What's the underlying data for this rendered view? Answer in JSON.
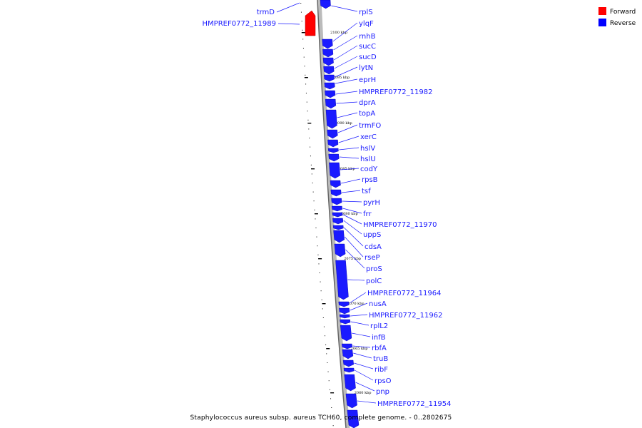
{
  "caption": "Staphylococcus aureus subsp. aureus TCH60, complete genome. - 0..2802675",
  "legend": [
    {
      "label": "Forward",
      "color": "#ff0000"
    },
    {
      "label": "Reverse",
      "color": "#0000ff"
    }
  ],
  "colors": {
    "forward": "#ff0000",
    "reverse": "#1a1aff",
    "backbone": "#999999",
    "label": "#1a1aff"
  },
  "tick_labels": [
    "2100 kbp",
    "2095 kbp",
    "2090 kbp",
    "2085 kbp",
    "2080 kbp",
    "2075 kbp",
    "2070 kbp",
    "2065 kbp",
    "2060 kbp"
  ],
  "forward_genes": [
    "trmD",
    "HMPREF0772_11989"
  ],
  "reverse_genes": [
    "rplS",
    "ylqF",
    "rnhB",
    "sucC",
    "sucD",
    "lytN",
    "eprH",
    "HMPREF0772_11982",
    "dprA",
    "topA",
    "trmFO",
    "xerC",
    "hslV",
    "hslU",
    "codY",
    "rpsB",
    "tsf",
    "pyrH",
    "frr",
    "HMPREF0772_11970",
    "uppS",
    "cdsA",
    "rseP",
    "proS",
    "polC",
    "HMPREF0772_11964",
    "nusA",
    "HMPREF0772_11962",
    "rplL2",
    "infB",
    "rbfA",
    "truB",
    "ribF",
    "rpsO",
    "pnp",
    "HMPREF0772_11954"
  ]
}
